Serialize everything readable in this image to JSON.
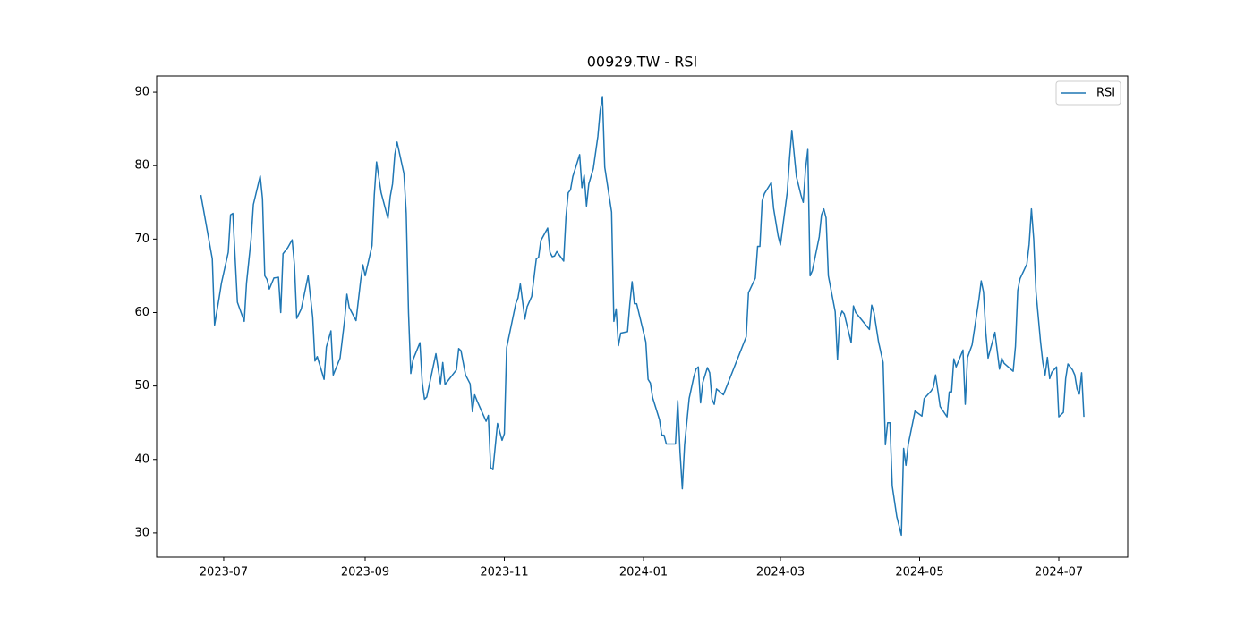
{
  "chart_data": {
    "type": "line",
    "title": "00929.TW - RSI",
    "x": [
      19529,
      19534,
      19535,
      19537,
      19538,
      19541,
      19542,
      19543,
      19545,
      19548,
      19549,
      19550,
      19551,
      19552,
      19555,
      19556,
      19557,
      19558,
      19559,
      19561,
      19563,
      19564,
      19565,
      19567,
      19569,
      19570,
      19571,
      19573,
      19576,
      19578,
      19579,
      19580,
      19583,
      19584,
      19586,
      19587,
      19590,
      19592,
      19593,
      19594,
      19597,
      19599,
      19600,
      19601,
      19604,
      19605,
      19606,
      19608,
      19611,
      19612,
      19613,
      19614,
      19615,
      19618,
      19619,
      19620,
      19621,
      19622,
      19625,
      19626,
      19627,
      19628,
      19632,
      19634,
      19635,
      19636,
      19641,
      19642,
      19643,
      19645,
      19647,
      19648,
      19649,
      19650,
      19654,
      19655,
      19656,
      19657,
      19659,
      19661,
      19662,
      19663,
      19667,
      19668,
      19669,
      19671,
      19672,
      19674,
      19676,
      19677,
      19678,
      19681,
      19682,
      19683,
      19684,
      19685,
      19688,
      19689,
      19690,
      19691,
      19692,
      19695,
      19696,
      19697,
      19698,
      19699,
      19701,
      19703,
      19704,
      19705,
      19706,
      19709,
      19710,
      19711,
      19712,
      19713,
      19716,
      19717,
      19718,
      19719,
      19720,
      19724,
      19725,
      19726,
      19727,
      19730,
      19731,
      19732,
      19733,
      19737,
      19738,
      19739,
      19740,
      19741,
      19743,
      19745,
      19746,
      19747,
      19748,
      19749,
      19751,
      19752,
      19753,
      19754,
      19755,
      19758,
      19768,
      19769,
      19772,
      19773,
      19774,
      19775,
      19776,
      19779,
      19780,
      19782,
      19783,
      19786,
      19787,
      19788,
      19790,
      19792,
      19793,
      19794,
      19795,
      19796,
      19797,
      19800,
      19801,
      19802,
      19803,
      19804,
      19807,
      19808,
      19809,
      19810,
      19811,
      19814,
      19815,
      19816,
      19822,
      19823,
      19824,
      19826,
      19828,
      19829,
      19830,
      19831,
      19832,
      19834,
      19836,
      19837,
      19838,
      19839,
      19842,
      19845,
      19846,
      19849,
      19850,
      19851,
      19853,
      19856,
      19857,
      19858,
      19859,
      19860,
      19863,
      19864,
      19865,
      19867,
      19870,
      19871,
      19872,
      19873,
      19874,
      19877,
      19879,
      19880,
      19881,
      19885,
      19886,
      19887,
      19888,
      19891,
      19892,
      19893,
      19894,
      19895,
      19897,
      19898,
      19899,
      19900,
      19901,
      19902,
      19904,
      19905,
      19907,
      19908,
      19909,
      19911,
      19912,
      19913,
      19914,
      19915,
      19916
    ],
    "series": [
      {
        "name": "RSI",
        "color": "#1f77b4",
        "values": [
          76,
          67.3,
          58.3,
          62,
          64,
          68.2,
          73.3,
          73.5,
          61.4,
          58.8,
          64,
          67,
          70,
          74.7,
          78.6,
          75.5,
          65,
          64.5,
          63.2,
          64.7,
          64.8,
          60,
          68,
          68.8,
          69.9,
          66.5,
          59.2,
          60.5,
          65,
          59.4,
          53.4,
          54,
          50.9,
          55.3,
          57.5,
          51.5,
          53.8,
          59,
          62.5,
          60.7,
          58.9,
          64.3,
          66.5,
          65,
          69.1,
          76,
          80.5,
          76.3,
          72.8,
          75.8,
          77.5,
          81.5,
          83.2,
          78.9,
          73.5,
          60,
          51.7,
          53.6,
          55.9,
          50.5,
          48.2,
          48.5,
          54.4,
          50.3,
          53.2,
          50.2,
          52.2,
          55.1,
          54.8,
          51.5,
          50.3,
          46.5,
          48.8,
          48,
          45.2,
          46,
          38.9,
          38.6,
          44.9,
          42.6,
          43.5,
          55.2,
          61.2,
          62,
          63.9,
          59.1,
          60.8,
          62.2,
          67.3,
          67.5,
          69.8,
          71.5,
          68.2,
          67.6,
          67.7,
          68.3,
          67,
          73,
          76.3,
          76.7,
          78.5,
          81.5,
          77,
          78.7,
          74.5,
          77.5,
          79.6,
          84,
          87.5,
          89.4,
          79.8,
          73.7,
          58.8,
          60.5,
          55.5,
          57.2,
          57.4,
          61.2,
          64.2,
          61.2,
          61.2,
          56,
          50.9,
          50.4,
          48.4,
          45.4,
          43.3,
          43.3,
          42.1,
          42.1,
          48,
          41,
          36,
          42,
          48.3,
          51.2,
          52.3,
          52.6,
          47.7,
          50.5,
          52.5,
          51.8,
          48.2,
          47.5,
          49.6,
          48.8,
          56.7,
          62.7,
          64.7,
          69,
          69,
          75.2,
          76.2,
          77.7,
          74.2,
          70.4,
          69.2,
          76.4,
          81,
          84.8,
          78.5,
          76,
          75,
          79.5,
          82.2,
          65,
          65.7,
          70.3,
          73.3,
          74.1,
          72.9,
          65,
          60.1,
          53.6,
          59.3,
          60.2,
          59.8,
          55.9,
          60.9,
          60,
          57.7,
          61,
          60,
          56,
          53.2,
          42,
          45,
          45,
          36.4,
          32.2,
          29.7,
          41.5,
          39.2,
          42,
          46.6,
          45.9,
          48.3,
          49.3,
          49.8,
          51.5,
          47.2,
          45.8,
          49.2,
          49.2,
          53.7,
          52.6,
          54.9,
          47.5,
          53.9,
          55.6,
          61.8,
          64.3,
          62.8,
          57.3,
          53.8,
          57.3,
          52.3,
          53.8,
          53.1,
          52,
          55.4,
          63,
          64.6,
          66.6,
          69.3,
          74.1,
          70,
          62.8,
          56,
          53.2,
          51.5,
          53.9,
          51,
          51.9,
          52.6,
          45.8,
          46.4,
          51,
          53,
          52.2,
          51.5,
          49.6,
          48.9,
          51.8,
          45.8
        ]
      }
    ],
    "xlim": [
      19509.6,
      19935.2
    ],
    "xticks": [
      {
        "value": 19539,
        "label": "2023-07"
      },
      {
        "value": 19601,
        "label": "2023-09"
      },
      {
        "value": 19662,
        "label": "2023-11"
      },
      {
        "value": 19723,
        "label": "2024-01"
      },
      {
        "value": 19783,
        "label": "2024-03"
      },
      {
        "value": 19844,
        "label": "2024-05"
      },
      {
        "value": 19905,
        "label": "2024-07"
      }
    ],
    "ylim": [
      26.7,
      92.2
    ],
    "yticks": [
      30,
      40,
      50,
      60,
      70,
      80,
      90
    ],
    "grid": false,
    "legend": "upper right"
  }
}
